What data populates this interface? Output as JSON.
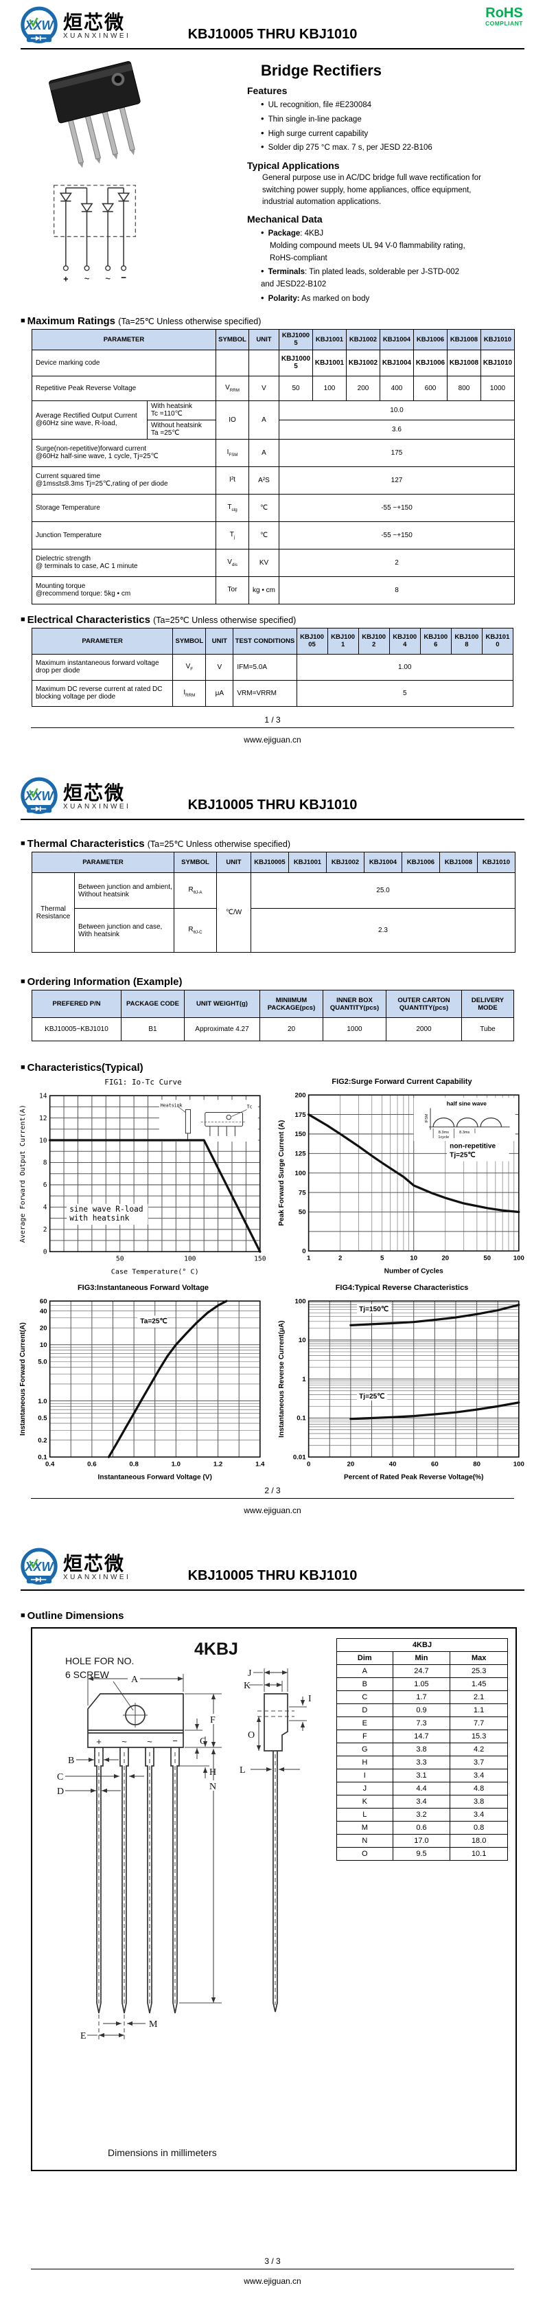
{
  "colors": {
    "table_header": "#c9d9ef",
    "rohs_green": "#00b050",
    "logo_blue": "#1a6aad",
    "accent_green": "#44b035"
  },
  "brand": {
    "logo_abbr": "XXW",
    "logo_cn": "烜芯微",
    "logo_en": "XUANXINWEI",
    "rohs": "RoHS",
    "rohs_sub": "COMPLIANT"
  },
  "doc_title": "KBJ10005 THRU KBJ1010",
  "models": [
    "KBJ10005",
    "KBJ1001",
    "KBJ1002",
    "KBJ1004",
    "KBJ1006",
    "KBJ1008",
    "KBJ1010"
  ],
  "common_headers": {
    "parameter": "PARAMETER",
    "symbol": "SYMBOL",
    "unit": "UNIT",
    "test": "TEST CONDITIONS"
  },
  "footer": {
    "site": "www.ejiguan.cn",
    "pages": [
      "1 / 3",
      "2 / 3",
      "3 / 3"
    ]
  },
  "page1": {
    "product_title": "Bridge Rectifiers",
    "features": {
      "title": "Features",
      "items": [
        "UL recognition, file #E230084",
        "Thin single in-line package",
        "High surge current capability",
        "Solder dip 275 °C max. 7 s, per JESD 22-B106"
      ]
    },
    "applications": {
      "title": "Typical Applications",
      "text": "General purpose use in AC/DC bridge full wave rectification for switching power supply, home appliances, office equipment, industrial automation applications."
    },
    "mechanical": {
      "title": "Mechanical Data",
      "items": [
        {
          "label": "Package",
          "text": ": 4KBJ",
          "cont": "Molding compound meets UL 94 V-0 flammability rating, RoHS-compliant"
        },
        {
          "label": "Terminals",
          "text": ": Tin plated leads, solderable per J-STD-002 and JESD22-B102",
          "cont": ""
        },
        {
          "label": "Polarity:",
          "text": " As marked on body",
          "cont": ""
        }
      ]
    },
    "terminals": [
      "+",
      "~",
      "~",
      "−"
    ]
  },
  "max_ratings": {
    "title": "Maximum Ratings",
    "condition": "(Ta=25℃ Unless otherwise specified)",
    "marking_param": "Device marking code",
    "marking_values": [
      "KBJ10005",
      "KBJ1001",
      "KBJ1002",
      "KBJ1004",
      "KBJ1006",
      "KBJ1008",
      "KBJ1010"
    ],
    "vrrm": {
      "param": "Repetitive Peak Reverse Voltage",
      "sym": "V",
      "sub": "RRM",
      "unit": "V",
      "values": [
        "50",
        "100",
        "200",
        "400",
        "600",
        "800",
        "1000"
      ]
    },
    "io": {
      "param": "Average Rectified Output Current @60Hz sine wave, R-load,",
      "sym": "IO",
      "unit": "A",
      "sub1_l1": "With heatsink",
      "sub1_l2": "Tc =110℃",
      "val1": "10.0",
      "sub2_l1": "Without heatsink",
      "sub2_l2": "Ta =25℃",
      "val2": "3.6"
    },
    "simple_rows": [
      {
        "p1": "Surge(non-repetitive)forward current",
        "p2": "@60Hz half-sine wave, 1 cycle,  Tj=25℃",
        "sym": "I",
        "sub": "FSM",
        "unit": "A",
        "value": "175"
      },
      {
        "p1": "Current squared time",
        "p2": "@1ms≤t≤8.3ms Tj=25℃,rating of per diode",
        "sym": "I²t",
        "sub": "",
        "unit": "A²S",
        "value": "127"
      },
      {
        "p1": "Storage Temperature",
        "p2": "",
        "sym": "T",
        "sub": "stg",
        "unit": "℃",
        "value": "-55 ~+150"
      },
      {
        "p1": "Junction Temperature",
        "p2": "",
        "sym": "T",
        "sub": "j",
        "unit": "℃",
        "value": "-55 ~+150"
      },
      {
        "p1": "Dielectric strength",
        "p2": "@ terminals to case, AC 1 minute",
        "sym": "V",
        "sub": "dis",
        "unit": "KV",
        "value": "2"
      },
      {
        "p1": "Mounting torque",
        "p2": "@recommend torque: 5kg • cm",
        "sym": "Tor",
        "sub": "",
        "unit": "kg • cm",
        "value": "8"
      }
    ]
  },
  "electrical": {
    "title": "Electrical Characteristics",
    "condition": "(Ta=25℃ Unless otherwise specified)",
    "rows": [
      {
        "param": "Maximum instantaneous forward voltage drop per diode",
        "sym": "V",
        "sub": "F",
        "unit": "V",
        "cond": "IFM=5.0A",
        "value": "1.00"
      },
      {
        "param": "Maximum DC reverse current at rated DC blocking voltage per diode",
        "sym": "I",
        "sub": "RRM",
        "unit": "μA",
        "cond": "VRM=VRRM",
        "value": "5"
      }
    ]
  },
  "thermal": {
    "title": "Thermal Characteristics",
    "condition": "(Ta=25℃ Unless otherwise specified)",
    "group": "Thermal Resistance",
    "unit": "℃/W",
    "rows": [
      {
        "param": "Between junction and ambient, Without heatsink",
        "sym": "R",
        "sub": "θJ-A",
        "value": "25.0"
      },
      {
        "param": "Between junction and case, With heatsink",
        "sym": "R",
        "sub": "θJ-C",
        "value": "2.3"
      }
    ]
  },
  "ordering": {
    "title": "Ordering Information (Example)",
    "headers": [
      "PREFERED P/N",
      "PACKAGE CODE",
      "UNIT WEIGHT(g)",
      "MINIIMUM PACKAGE(pcs)",
      "INNER BOX QUANTITY(pcs)",
      "OUTER CARTON QUANTITY(pcs)",
      "DELIVERY MODE"
    ],
    "row": [
      "KBJ10005~KBJ1010",
      "B1",
      "Approximate 4.27",
      "20",
      "1000",
      "2000",
      "Tube"
    ]
  },
  "characteristics_title": "Characteristics(Typical)",
  "chart_data": [
    {
      "id": "fig1",
      "type": "line",
      "title": "FIG1: Io-Tc Curve",
      "mono": true,
      "xlabel": "Case Temperature(° C)",
      "ylabel": "Average Forward Output Current(A)",
      "xscale": "linear",
      "yscale": "linear",
      "xlim": [
        0,
        150
      ],
      "ylim": [
        0,
        14
      ],
      "xgrid_step": 10,
      "ygrid_step": 1,
      "xticks": [
        [
          50,
          "50"
        ],
        [
          100,
          "100"
        ],
        [
          150,
          "150"
        ]
      ],
      "yticks": [
        [
          0,
          "0"
        ],
        [
          2,
          "2"
        ],
        [
          4,
          "4"
        ],
        [
          6,
          "6"
        ],
        [
          8,
          "8"
        ],
        [
          10,
          "10"
        ],
        [
          12,
          "12"
        ],
        [
          14,
          "14"
        ]
      ],
      "series": [
        {
          "name": "Io",
          "x": [
            0,
            110,
            150
          ],
          "y": [
            10,
            10,
            0
          ]
        }
      ],
      "annotations": [
        {
          "text": "sine wave R-load\nwith heatsink",
          "x": 14,
          "y": 3.6
        }
      ],
      "inset": "heatsink",
      "inset_labels": [
        "Heatsink",
        "Tc"
      ]
    },
    {
      "id": "fig2",
      "type": "line",
      "title": "FIG2:Surge Forward Current Capability",
      "xlabel": "Number of Cycles",
      "ylabel": "Peak Forward Surge Current (A)",
      "xscale": "log",
      "yscale": "linear",
      "xlim": [
        1,
        100
      ],
      "ylim": [
        0,
        200
      ],
      "ygrid_step": 25,
      "xticks": [
        [
          1,
          "1"
        ],
        [
          2,
          "2"
        ],
        [
          5,
          "5"
        ],
        [
          10,
          "10"
        ],
        [
          20,
          "20"
        ],
        [
          50,
          "50"
        ],
        [
          100,
          "100"
        ]
      ],
      "yticks": [
        [
          0,
          "0"
        ],
        [
          50,
          "50"
        ],
        [
          75,
          "75"
        ],
        [
          100,
          "100"
        ],
        [
          125,
          "125"
        ],
        [
          150,
          "150"
        ],
        [
          175,
          "175"
        ],
        [
          200,
          "200"
        ]
      ],
      "series": [
        {
          "name": "IFSM",
          "x": [
            1,
            1.5,
            2,
            3,
            4,
            5,
            6,
            8,
            10,
            15,
            20,
            30,
            50,
            70,
            100
          ],
          "y": [
            175,
            161,
            150,
            134,
            122,
            113,
            106,
            95,
            84,
            74,
            68,
            61,
            55,
            52,
            50
          ]
        }
      ],
      "annotations": [
        {
          "text": "non-repetitive\nTj=25℃",
          "x": 22,
          "y": 132
        }
      ],
      "inset": "halfsine",
      "inset_labels": [
        "half sine wave",
        "IFSM",
        "8.3ms",
        "8.3ms",
        "1cycle"
      ]
    },
    {
      "id": "fig3",
      "type": "line",
      "title": "FIG3:Instantaneous Forward Voltage",
      "xlabel": "Instantaneous Forward Voltage (V)",
      "ylabel": "Instantaneous Forward Current(A)",
      "xscale": "linear",
      "yscale": "log",
      "xlim": [
        0.4,
        1.4
      ],
      "ylim": [
        0.1,
        60
      ],
      "xgrid_step": 0.1,
      "xticks": [
        [
          0.4,
          "0.4"
        ],
        [
          0.6,
          "0.6"
        ],
        [
          0.8,
          "0.8"
        ],
        [
          1.0,
          "1.0"
        ],
        [
          1.2,
          "1.2"
        ],
        [
          1.4,
          "1.4"
        ]
      ],
      "yticks": [
        [
          0.1,
          "0.1"
        ],
        [
          0.2,
          "0.2"
        ],
        [
          0.5,
          "0.5"
        ],
        [
          1.0,
          "1.0"
        ],
        [
          5.0,
          "5.0"
        ],
        [
          10,
          "10"
        ],
        [
          20,
          "20"
        ],
        [
          40,
          "40"
        ],
        [
          60,
          "60"
        ]
      ],
      "series": [
        {
          "name": "VF",
          "x": [
            0.68,
            0.72,
            0.76,
            0.8,
            0.84,
            0.88,
            0.92,
            0.96,
            1.0,
            1.05,
            1.1,
            1.15,
            1.2,
            1.24
          ],
          "y": [
            0.1,
            0.18,
            0.33,
            0.6,
            1.1,
            2.0,
            3.6,
            6.3,
            10,
            16,
            25,
            37,
            50,
            60
          ]
        }
      ],
      "annotations": [
        {
          "text": "Ta=25℃",
          "x": 0.83,
          "y": 24
        }
      ]
    },
    {
      "id": "fig4",
      "type": "line",
      "title": "FIG4:Typical Reverse Characteristics",
      "xlabel": "Percent of Rated Peak Reverse Voltage(%)",
      "ylabel": "Instantaneous Reverse Current(μA)",
      "xscale": "linear",
      "yscale": "log",
      "xlim": [
        0,
        100
      ],
      "ylim": [
        0.01,
        100
      ],
      "xgrid_step": 10,
      "xticks": [
        [
          0,
          "0"
        ],
        [
          20,
          "20"
        ],
        [
          40,
          "40"
        ],
        [
          60,
          "60"
        ],
        [
          80,
          "80"
        ],
        [
          100,
          "100"
        ]
      ],
      "yticks": [
        [
          0.01,
          "0.01"
        ],
        [
          0.1,
          "0.1"
        ],
        [
          1,
          "1"
        ],
        [
          10,
          "10"
        ],
        [
          100,
          "100"
        ]
      ],
      "series": [
        {
          "name": "Tj=150C",
          "x": [
            20,
            30,
            40,
            50,
            60,
            70,
            80,
            90,
            100
          ],
          "y": [
            24,
            25.5,
            27,
            29,
            33,
            38,
            46,
            58,
            80
          ],
          "label": "Tj=150℃",
          "label_x": 24,
          "label_y": 55
        },
        {
          "name": "Tj=25C",
          "x": [
            20,
            30,
            40,
            50,
            60,
            70,
            80,
            90,
            100
          ],
          "y": [
            0.095,
            0.1,
            0.105,
            0.112,
            0.125,
            0.14,
            0.165,
            0.2,
            0.25
          ],
          "label": "Tj=25℃",
          "label_x": 24,
          "label_y": 0.32
        }
      ]
    }
  ],
  "outline": {
    "title": "Outline Dimensions",
    "package": "4KBJ",
    "hole_note1": "HOLE FOR NO.",
    "hole_note2": "6 SCREW",
    "caption": "Dimensions in millimeters",
    "terminals": [
      "+",
      "~",
      "~",
      "−"
    ],
    "dim_table": {
      "title": "4KBJ",
      "headers": [
        "Dim",
        "Min",
        "Max"
      ],
      "rows": [
        [
          "A",
          "24.7",
          "25.3"
        ],
        [
          "B",
          "1.05",
          "1.45"
        ],
        [
          "C",
          "1.7",
          "2.1"
        ],
        [
          "D",
          "0.9",
          "1.1"
        ],
        [
          "E",
          "7.3",
          "7.7"
        ],
        [
          "F",
          "14.7",
          "15.3"
        ],
        [
          "G",
          "3.8",
          "4.2"
        ],
        [
          "H",
          "3.3",
          "3.7"
        ],
        [
          "I",
          "3.1",
          "3.4"
        ],
        [
          "J",
          "4.4",
          "4.8"
        ],
        [
          "K",
          "3.4",
          "3.8"
        ],
        [
          "L",
          "3.2",
          "3.4"
        ],
        [
          "M",
          "0.6",
          "0.8"
        ],
        [
          "N",
          "17.0",
          "18.0"
        ],
        [
          "O",
          "9.5",
          "10.1"
        ]
      ]
    }
  }
}
